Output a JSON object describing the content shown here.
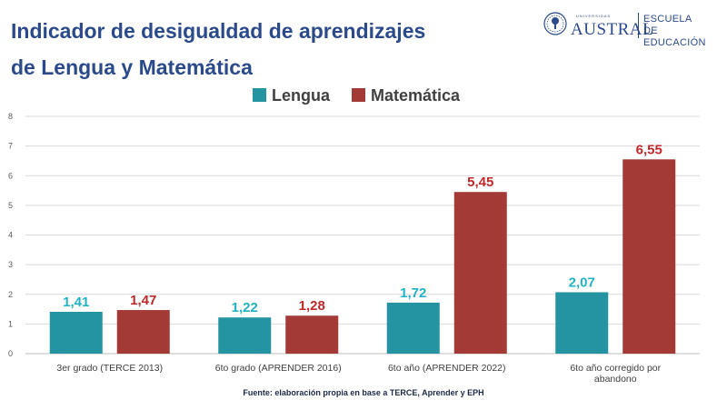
{
  "header": {
    "title_line1": "Indicador de desigualdad de aprendizajes",
    "title_line2": "de Lengua y Matemática"
  },
  "logo": {
    "universidad": "UNIVERSIDAD",
    "austral": "AUSTRAL",
    "escuela_line1": "ESCUELA",
    "escuela_line2": "DE EDUCACIÓN"
  },
  "colors": {
    "lengua": "#2494a3",
    "matematica": "#a33a35",
    "lengua_label": "#1fb3c6",
    "matematica_label": "#c0282a",
    "title": "#2b4a8c",
    "grid": "#d9d9d9",
    "axis_text": "#595959"
  },
  "footer": {
    "source": "Fuente: elaboración propia en base a TERCE, Aprender y EPH"
  },
  "chart_data": {
    "type": "bar",
    "categories": [
      "3er grado (TERCE 2013)",
      "6to grado (APRENDER 2016)",
      "6to año (APRENDER 2022)",
      "6to año corregido por abandono"
    ],
    "series": [
      {
        "name": "Lengua",
        "values": [
          1.41,
          1.22,
          1.72,
          2.07
        ],
        "labels": [
          "1,41",
          "1,22",
          "1,72",
          "2,07"
        ]
      },
      {
        "name": "Matemática",
        "values": [
          1.47,
          1.28,
          5.45,
          6.55
        ],
        "labels": [
          "1,47",
          "1,28",
          "5,45",
          "6,55"
        ]
      }
    ],
    "ylim": [
      0,
      8
    ],
    "yticks": [
      "0",
      "1",
      "2",
      "3",
      "4",
      "5",
      "6",
      "7",
      "8"
    ],
    "legend_position": "top-center",
    "grid": true
  }
}
